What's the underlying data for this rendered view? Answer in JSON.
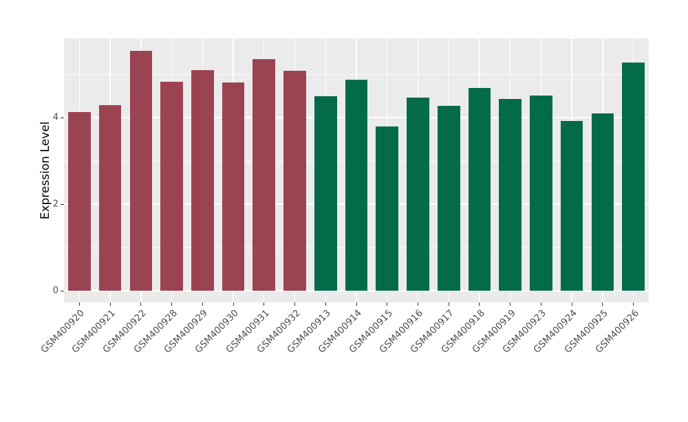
{
  "chart_data": {
    "type": "bar",
    "title": "",
    "xlabel": "",
    "ylabel": "Expression Level",
    "categories": [
      "GSM400920",
      "GSM400921",
      "GSM400922",
      "GSM400928",
      "GSM400929",
      "GSM400930",
      "GSM400931",
      "GSM400932",
      "GSM400913",
      "GSM400914",
      "GSM400915",
      "GSM400916",
      "GSM400917",
      "GSM400918",
      "GSM400919",
      "GSM400923",
      "GSM400924",
      "GSM400925",
      "GSM400926"
    ],
    "values": [
      4.13,
      4.29,
      5.54,
      4.83,
      5.1,
      4.81,
      5.35,
      5.09,
      4.49,
      4.88,
      3.79,
      4.46,
      4.27,
      4.68,
      4.44,
      4.51,
      3.92,
      4.1,
      5.27
    ],
    "bar_groups": [
      "group1",
      "group1",
      "group1",
      "group1",
      "group1",
      "group1",
      "group1",
      "group1",
      "group2",
      "group2",
      "group2",
      "group2",
      "group2",
      "group2",
      "group2",
      "group2",
      "group2",
      "group2",
      "group2"
    ],
    "group_colors": {
      "group1": "#9c4352",
      "group2": "#046b4a"
    },
    "yticks": [
      0,
      2,
      4
    ],
    "yticks_minor": [
      1,
      3,
      5
    ],
    "ylim": [
      -0.27,
      5.83
    ],
    "bar_width_frac": 0.73,
    "panel_bg": "#ebebeb",
    "grid_color": "#ffffff",
    "grid": "on",
    "legend": "none",
    "tick_label_color": "#4d4d4d",
    "x_tick_rotation_deg": 45
  }
}
